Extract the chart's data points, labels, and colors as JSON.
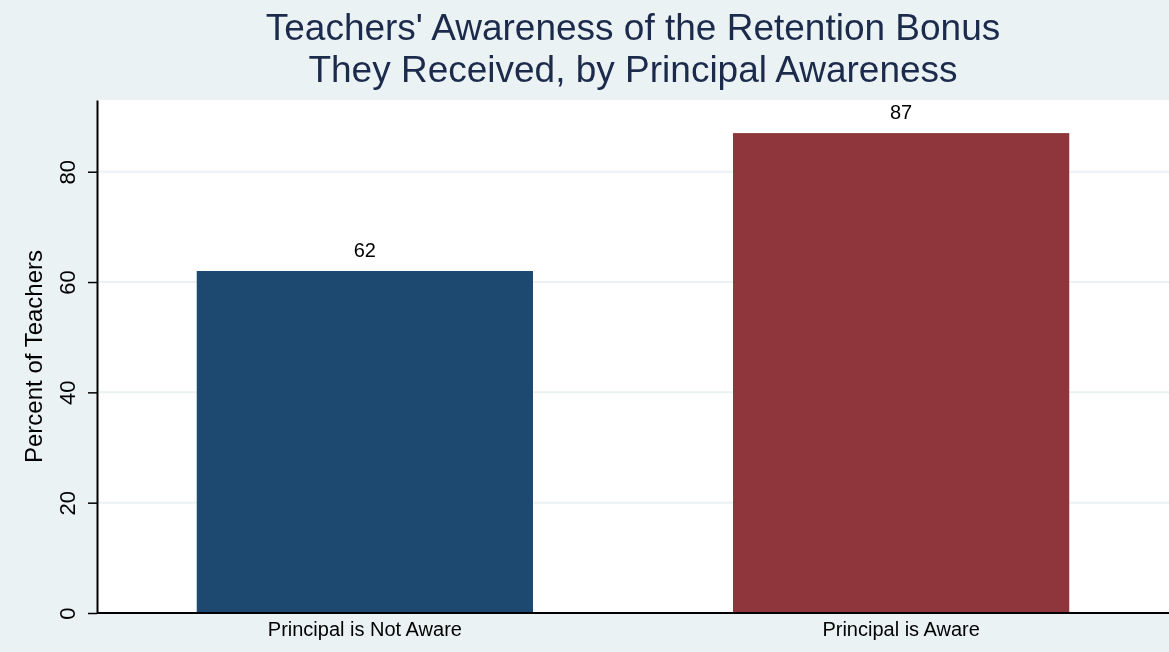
{
  "chart_data": {
    "type": "bar",
    "title": "Teachers' Awareness of the Retention Bonus\nThey Received, by Principal Awareness",
    "ylabel": "Percent of Teachers",
    "categories": [
      "Principal is Not Aware",
      "Principal is Aware"
    ],
    "values": [
      62,
      87
    ],
    "colors": [
      "#1d4870",
      "#8f363d"
    ],
    "ylim": [
      0,
      93
    ],
    "yticks": [
      0,
      20,
      40,
      60,
      80
    ],
    "grid": "y",
    "data_labels": true
  }
}
